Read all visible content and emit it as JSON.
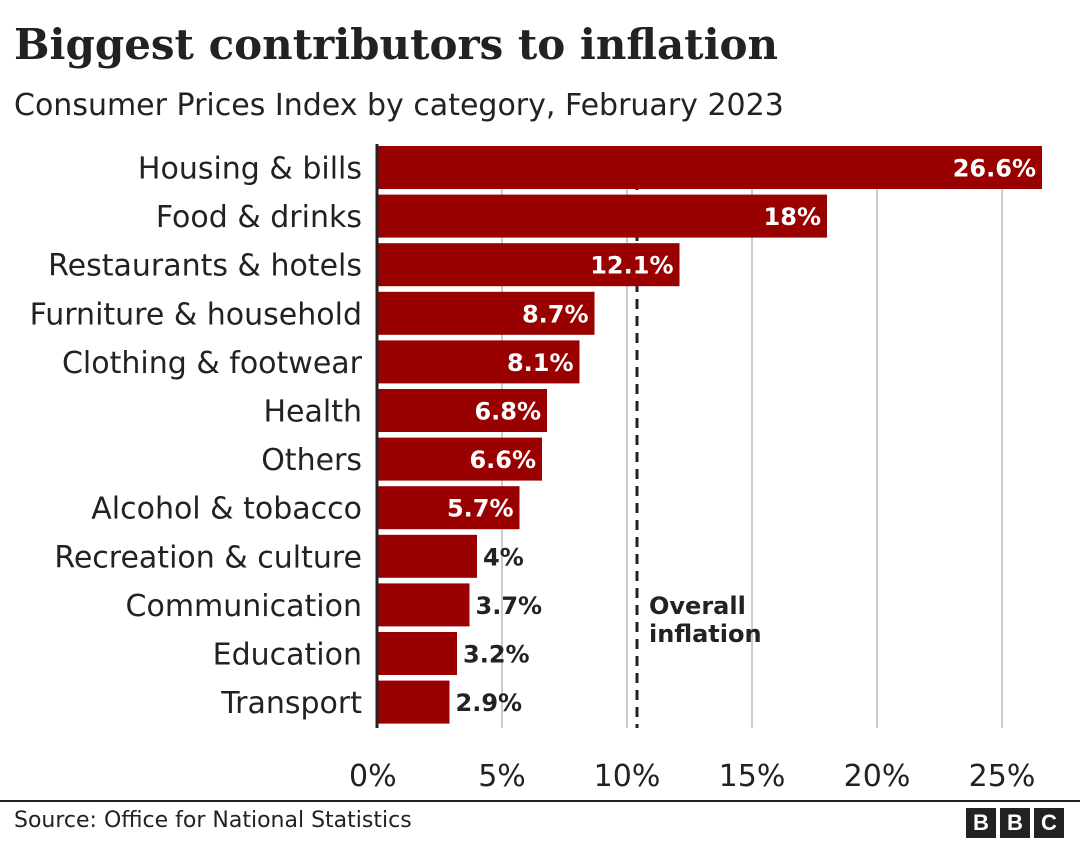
{
  "chart_data": {
    "type": "bar",
    "orientation": "horizontal",
    "title": "Biggest contributors to inflation",
    "subtitle": "Consumer Prices Index by category, February 2023",
    "categories": [
      "Housing & bills",
      "Food & drinks",
      "Restaurants & hotels",
      "Furniture & household",
      "Clothing & footwear",
      "Health",
      "Others",
      "Alcohol & tobacco",
      "Recreation & culture",
      "Communication",
      "Education",
      "Transport"
    ],
    "values": [
      26.6,
      18,
      12.1,
      8.7,
      8.1,
      6.8,
      6.6,
      5.7,
      4,
      3.7,
      3.2,
      2.9
    ],
    "value_labels": [
      "26.6%",
      "18%",
      "12.1%",
      "8.7%",
      "8.1%",
      "6.8%",
      "6.6%",
      "5.7%",
      "4%",
      "3.7%",
      "3.2%",
      "2.9%"
    ],
    "xlim": [
      0,
      27
    ],
    "xticks": [
      0,
      5,
      10,
      15,
      20,
      25
    ],
    "xtick_labels": [
      "0%",
      "5%",
      "10%",
      "15%",
      "20%",
      "25%"
    ],
    "reference_line": {
      "value": 10.4,
      "label_lines": [
        "Overall",
        "inflation"
      ]
    },
    "grid": "vertical",
    "bar_color": "#990000"
  },
  "footer": {
    "source": "Source: Office for National Statistics",
    "logo_letters": [
      "B",
      "B",
      "C"
    ]
  }
}
